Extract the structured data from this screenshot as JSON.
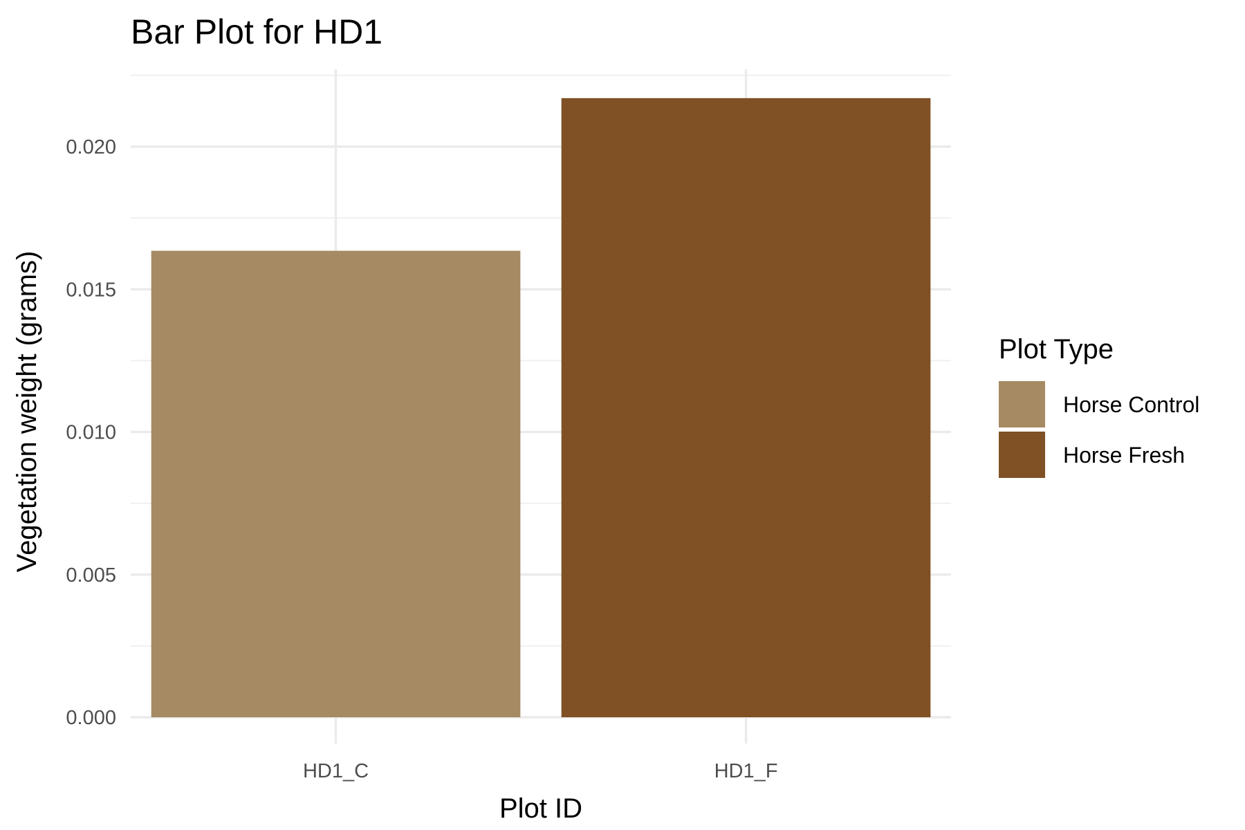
{
  "chart_data": {
    "type": "bar",
    "title": "Bar Plot for HD1",
    "xlabel": "Plot ID",
    "ylabel": "Vegetation weight (grams)",
    "categories": [
      "HD1_C",
      "HD1_F"
    ],
    "values": [
      0.01635,
      0.0217
    ],
    "bar_colors": [
      "#A68A64",
      "#7F5125"
    ],
    "ylim": [
      0,
      0.0225
    ],
    "yticks": [
      0.0,
      0.005,
      0.01,
      0.015,
      0.02
    ],
    "ytick_labels": [
      "0.000",
      "0.005",
      "0.010",
      "0.015",
      "0.020"
    ],
    "grid": true,
    "legend": {
      "title": "Plot Type",
      "position": "right",
      "entries": [
        {
          "label": "Horse Control",
          "color": "#A68A64"
        },
        {
          "label": "Horse Fresh",
          "color": "#7F5125"
        }
      ]
    }
  }
}
